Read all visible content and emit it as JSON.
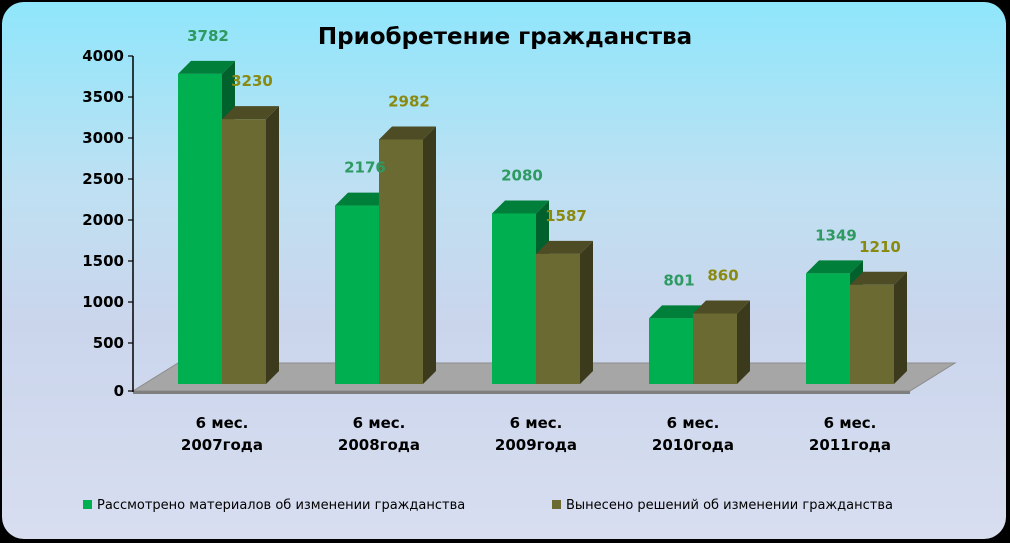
{
  "chart_data": {
    "type": "bar",
    "title": "Приобретение гражданства",
    "categories": [
      [
        "6 мес.",
        "2007года"
      ],
      [
        "6 мес.",
        "2008года"
      ],
      [
        "6 мес.",
        "2009года"
      ],
      [
        "6 мес.",
        "2010года"
      ],
      [
        "6 мес.",
        "2011года"
      ]
    ],
    "series": [
      {
        "name": "Рассмотрено материалов об изменении гражданства",
        "values": [
          3782,
          2176,
          2080,
          801,
          1349
        ],
        "color": "#00b050"
      },
      {
        "name": "Вынесено решений об изменении гражданства",
        "values": [
          3230,
          2982,
          1587,
          860,
          1210
        ],
        "color": "#6b6a32"
      }
    ],
    "yticks": [
      0,
      500,
      1000,
      1500,
      2000,
      2500,
      3000,
      3500,
      4000
    ],
    "ylim": [
      0,
      4000
    ],
    "legend_position": "bottom",
    "grid": false
  }
}
